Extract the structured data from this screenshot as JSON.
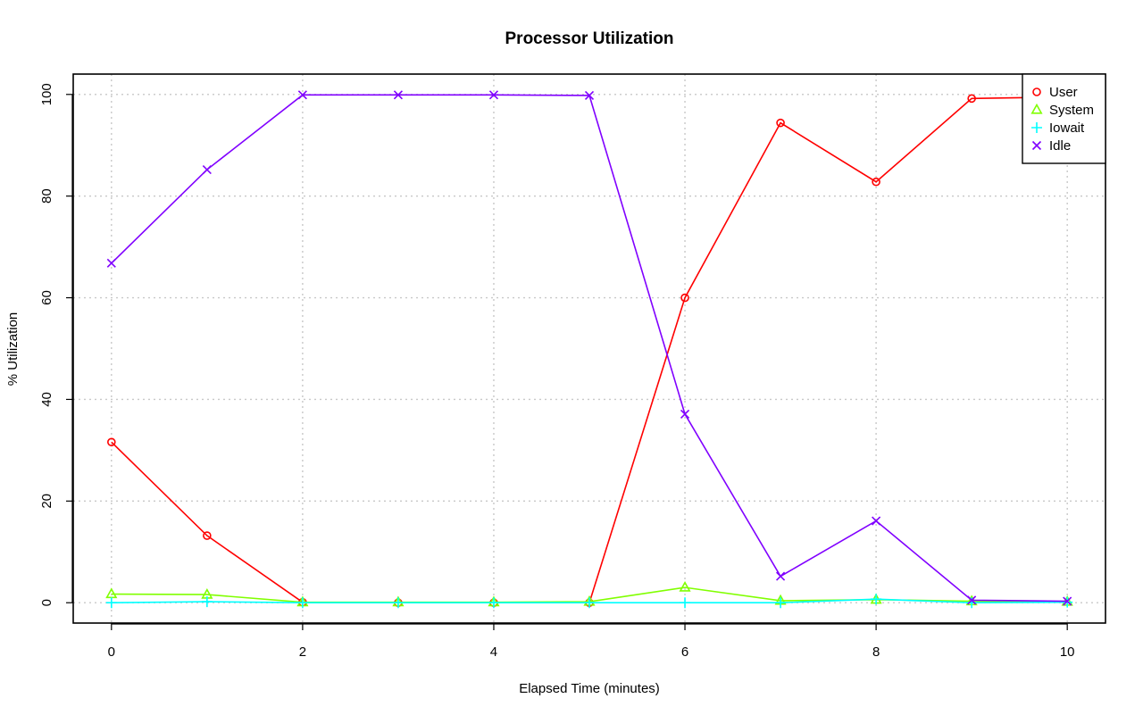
{
  "chart_data": {
    "type": "line",
    "title": "Processor Utilization",
    "xlabel": "Elapsed Time (minutes)",
    "ylabel": "% Utilization",
    "x": [
      0,
      1,
      2,
      3,
      4,
      5,
      6,
      7,
      8,
      9,
      10
    ],
    "xlim": [
      -0.4,
      10.4
    ],
    "ylim": [
      -4,
      104
    ],
    "xticks": [
      0,
      2,
      4,
      6,
      8,
      10
    ],
    "yticks": [
      0,
      20,
      40,
      60,
      80,
      100
    ],
    "grid": true,
    "legend_position": "top-right",
    "series": [
      {
        "name": "User",
        "color": "#ff0000",
        "marker": "circle",
        "values": [
          31.6,
          13.2,
          0.1,
          0.0,
          0.0,
          0.0,
          60.0,
          94.4,
          82.8,
          99.2,
          99.5
        ]
      },
      {
        "name": "System",
        "color": "#80ff00",
        "marker": "triangle",
        "values": [
          1.7,
          1.6,
          0.1,
          0.1,
          0.1,
          0.2,
          3.0,
          0.4,
          0.6,
          0.3,
          0.2
        ]
      },
      {
        "name": "Iowait",
        "color": "#00ffff",
        "marker": "plus",
        "values": [
          0.0,
          0.2,
          0.0,
          0.0,
          0.0,
          0.0,
          0.0,
          0.0,
          0.7,
          0.0,
          0.1
        ]
      },
      {
        "name": "Idle",
        "color": "#8000ff",
        "marker": "cross",
        "values": [
          66.8,
          85.2,
          99.9,
          99.9,
          99.9,
          99.8,
          37.1,
          5.2,
          16.1,
          0.5,
          0.3
        ]
      }
    ]
  }
}
